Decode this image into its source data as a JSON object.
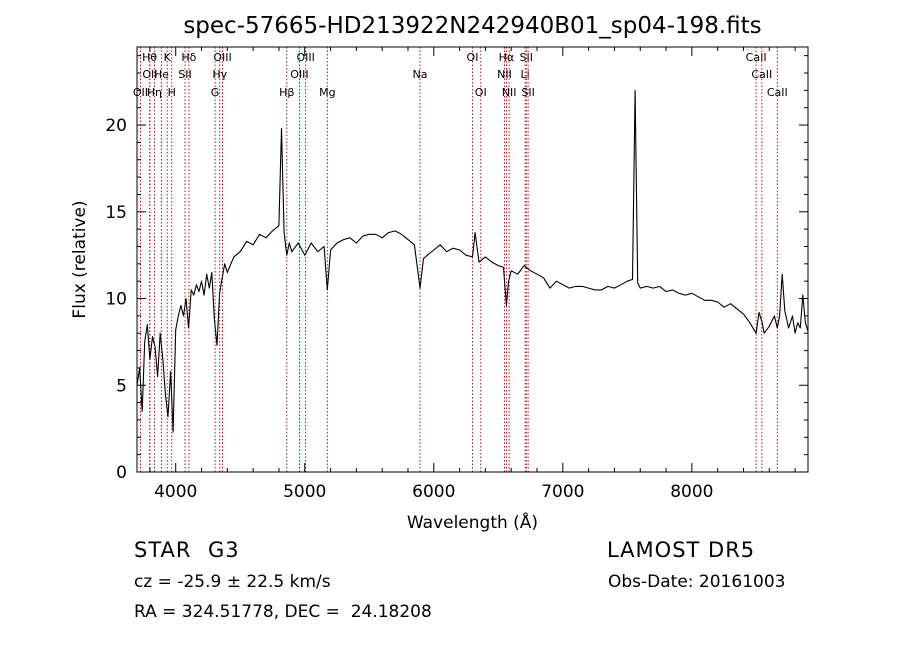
{
  "chart_data": {
    "type": "line",
    "title": "spec-57665-HD213922N242940B01_sp04-198.fits",
    "xlabel": "Wavelength (Å)",
    "ylabel": "Flux (relative)",
    "xlim": [
      3700,
      8900
    ],
    "ylim": [
      0,
      24.5
    ],
    "xticks": [
      4000,
      5000,
      6000,
      7000,
      8000
    ],
    "yticks": [
      0,
      5,
      10,
      15,
      20
    ],
    "grid": false,
    "line_color": "#000000",
    "marker_color": "#aa0000",
    "lines": [
      {
        "label": "OII",
        "x": 3727,
        "row": 2
      },
      {
        "label": "Hθ",
        "x": 3798,
        "row": 0
      },
      {
        "label": "OII",
        "x": 3800,
        "row": 1
      },
      {
        "label": "Hη",
        "x": 3835,
        "row": 2
      },
      {
        "label": "He",
        "x": 3889,
        "row": 1
      },
      {
        "label": "K",
        "x": 3934,
        "row": 0
      },
      {
        "label": "H",
        "x": 3969,
        "row": 2
      },
      {
        "label": "Hδ",
        "x": 4102,
        "row": 0
      },
      {
        "label": "SII",
        "x": 4072,
        "row": 1
      },
      {
        "label": "G",
        "x": 4305,
        "row": 2
      },
      {
        "label": "Hγ",
        "x": 4341,
        "row": 1
      },
      {
        "label": "OIII",
        "x": 4363,
        "row": 0
      },
      {
        "label": "Hβ",
        "x": 4861,
        "row": 2
      },
      {
        "label": "OIII",
        "x": 4959,
        "row": 1
      },
      {
        "label": "OIII",
        "x": 5007,
        "row": 0
      },
      {
        "label": "Mg",
        "x": 5175,
        "row": 2
      },
      {
        "label": "Na",
        "x": 5893,
        "row": 1
      },
      {
        "label": "OI",
        "x": 6300,
        "row": 0
      },
      {
        "label": "OI",
        "x": 6364,
        "row": 2
      },
      {
        "label": "Hα",
        "x": 6563,
        "row": 0
      },
      {
        "label": "NII",
        "x": 6548,
        "row": 1
      },
      {
        "label": "NII",
        "x": 6584,
        "row": 2
      },
      {
        "label": "SII",
        "x": 6717,
        "row": 0
      },
      {
        "label": "Li",
        "x": 6708,
        "row": 1
      },
      {
        "label": "SII",
        "x": 6731,
        "row": 2
      },
      {
        "label": "CaII",
        "x": 8498,
        "row": 0
      },
      {
        "label": "CaII",
        "x": 8542,
        "row": 1
      },
      {
        "label": "CaII",
        "x": 8662,
        "row": 2
      }
    ],
    "spectrum": {
      "x": [
        3700,
        3720,
        3740,
        3760,
        3780,
        3800,
        3820,
        3840,
        3860,
        3880,
        3900,
        3920,
        3940,
        3960,
        3980,
        4000,
        4020,
        4040,
        4060,
        4080,
        4100,
        4120,
        4140,
        4160,
        4180,
        4200,
        4220,
        4240,
        4260,
        4280,
        4300,
        4320,
        4340,
        4360,
        4380,
        4400,
        4450,
        4500,
        4550,
        4600,
        4650,
        4700,
        4750,
        4800,
        4820,
        4840,
        4861,
        4880,
        4900,
        4950,
        5000,
        5050,
        5100,
        5150,
        5175,
        5200,
        5250,
        5300,
        5350,
        5400,
        5450,
        5500,
        5550,
        5600,
        5650,
        5700,
        5750,
        5800,
        5850,
        5893,
        5920,
        5950,
        6000,
        6050,
        6100,
        6150,
        6200,
        6250,
        6300,
        6320,
        6350,
        6400,
        6450,
        6500,
        6540,
        6563,
        6580,
        6600,
        6650,
        6700,
        6750,
        6800,
        6850,
        6900,
        6950,
        7000,
        7050,
        7100,
        7150,
        7200,
        7250,
        7300,
        7350,
        7400,
        7450,
        7500,
        7540,
        7560,
        7580,
        7600,
        7650,
        7700,
        7750,
        7800,
        7850,
        7900,
        7950,
        8000,
        8050,
        8100,
        8150,
        8200,
        8250,
        8300,
        8350,
        8400,
        8450,
        8498,
        8520,
        8542,
        8560,
        8600,
        8640,
        8662,
        8680,
        8700,
        8720,
        8750,
        8780,
        8800,
        8820,
        8840,
        8860,
        8880,
        8900
      ],
      "y": [
        5.0,
        6.0,
        3.5,
        7.5,
        8.5,
        6.5,
        7.8,
        7.2,
        5.5,
        8.0,
        6.5,
        4.5,
        3.2,
        5.8,
        2.3,
        8.2,
        9.0,
        9.6,
        9.0,
        10.0,
        8.3,
        10.5,
        10.2,
        10.8,
        10.4,
        11.0,
        10.2,
        11.4,
        10.6,
        11.5,
        8.8,
        7.3,
        10.3,
        11.2,
        12.0,
        11.5,
        12.4,
        12.7,
        13.3,
        13.1,
        13.7,
        13.5,
        13.9,
        14.2,
        19.8,
        13.8,
        12.5,
        13.2,
        12.7,
        13.2,
        12.5,
        13.2,
        12.7,
        13.0,
        10.5,
        12.8,
        13.2,
        13.4,
        13.5,
        13.2,
        13.6,
        13.7,
        13.7,
        13.5,
        13.8,
        13.9,
        13.7,
        13.4,
        13.1,
        10.6,
        12.3,
        12.5,
        12.8,
        13.1,
        12.7,
        12.9,
        12.8,
        12.5,
        12.4,
        13.8,
        12.1,
        12.4,
        12.1,
        11.9,
        11.8,
        9.6,
        11.0,
        11.6,
        11.4,
        11.9,
        11.6,
        11.4,
        11.2,
        10.6,
        11.0,
        10.8,
        10.6,
        10.7,
        10.7,
        10.6,
        10.5,
        10.5,
        10.7,
        10.6,
        10.8,
        11.0,
        11.1,
        22.0,
        10.9,
        10.6,
        10.7,
        10.6,
        10.7,
        10.4,
        10.5,
        10.3,
        10.2,
        10.3,
        10.1,
        9.9,
        9.9,
        9.8,
        9.5,
        9.7,
        9.4,
        9.1,
        8.6,
        8.0,
        9.2,
        8.7,
        8.0,
        8.4,
        9.0,
        8.3,
        9.0,
        11.4,
        9.3,
        8.3,
        9.0,
        8.0,
        8.6,
        8.3,
        10.2,
        8.6,
        8.1
      ]
    }
  },
  "info": {
    "obj_type": "STAR",
    "obj_class": "G3",
    "survey": "LAMOST DR5",
    "cz": "cz = -25.9 ± 22.5 km/s",
    "obs_date": "Obs-Date: 20161003",
    "radec": "RA = 324.51778, DEC =  24.18208"
  }
}
